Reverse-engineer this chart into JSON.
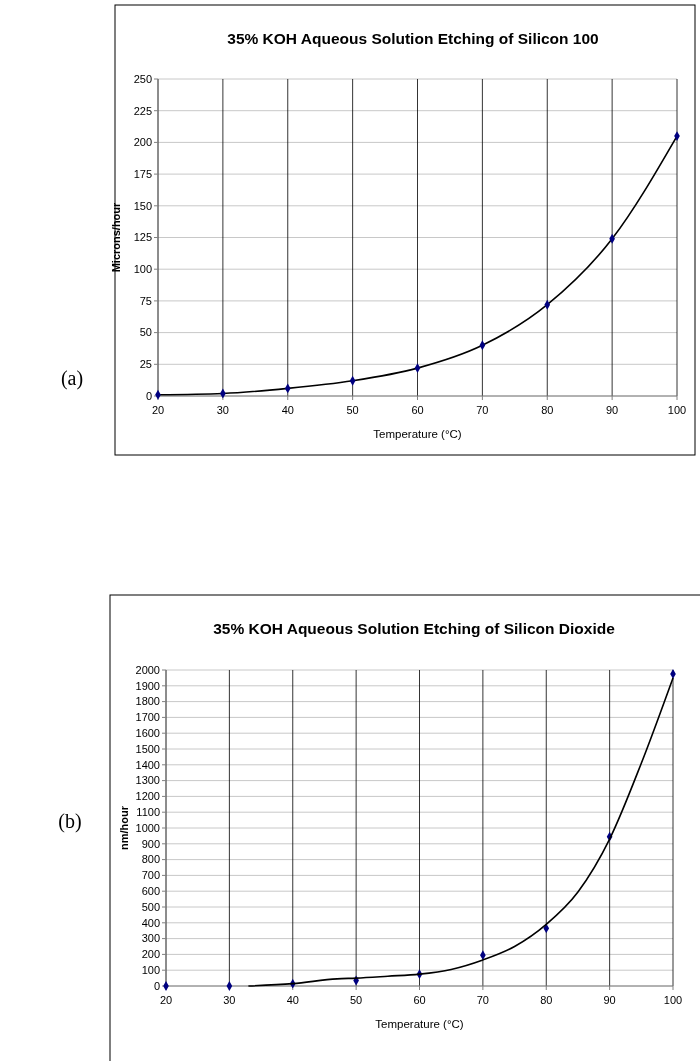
{
  "chart_data": [
    {
      "type": "line",
      "title": "35% KOH Aqueous Solution Etching of Silicon 100",
      "xlabel": "Temperature (°C)",
      "ylabel": "Microns/hour",
      "annotations": [
        "(a)"
      ],
      "x": [
        20,
        30,
        40,
        50,
        60,
        70,
        80,
        90,
        100
      ],
      "series": [
        {
          "color": "#000000",
          "values": [
            1,
            2,
            6,
            12,
            22,
            40,
            72,
            124,
            205
          ]
        }
      ],
      "marker": "diamond",
      "grid": true,
      "xlim": [
        20,
        100
      ],
      "xticks": [
        20,
        30,
        40,
        50,
        60,
        70,
        80,
        90,
        100
      ],
      "ylim": [
        0,
        250
      ],
      "yticks": [
        0,
        25,
        50,
        75,
        100,
        125,
        150,
        175,
        200,
        225,
        250
      ]
    },
    {
      "type": "scatter",
      "title": "35% KOH Aqueous Solution Etching of Silicon Dioxide",
      "xlabel": "Temperature (°C)",
      "ylabel": "nm/hour",
      "annotations": [
        "(b)"
      ],
      "x": [
        20,
        30,
        40,
        50,
        60,
        70,
        80,
        90,
        100
      ],
      "series": [
        {
          "color": "#000080",
          "values": [
            0,
            0,
            15,
            35,
            75,
            195,
            365,
            945,
            1975
          ]
        },
        {
          "type": "line",
          "marker": "none",
          "color": "#000000",
          "x": [
            33,
            40,
            47,
            50,
            55,
            60,
            65,
            70,
            75,
            80,
            85,
            90,
            95,
            100
          ],
          "values": [
            0,
            15,
            45,
            50,
            62,
            75,
            105,
            165,
            250,
            390,
            595,
            930,
            1410,
            1950
          ]
        }
      ],
      "marker": "diamond",
      "grid": true,
      "xlim": [
        20,
        100
      ],
      "xticks": [
        20,
        30,
        40,
        50,
        60,
        70,
        80,
        90,
        100
      ],
      "ylim": [
        0,
        2000
      ],
      "yticks": [
        0,
        100,
        200,
        300,
        400,
        500,
        600,
        700,
        800,
        900,
        1000,
        1100,
        1200,
        1300,
        1400,
        1500,
        1600,
        1700,
        1800,
        1900,
        2000
      ]
    }
  ]
}
